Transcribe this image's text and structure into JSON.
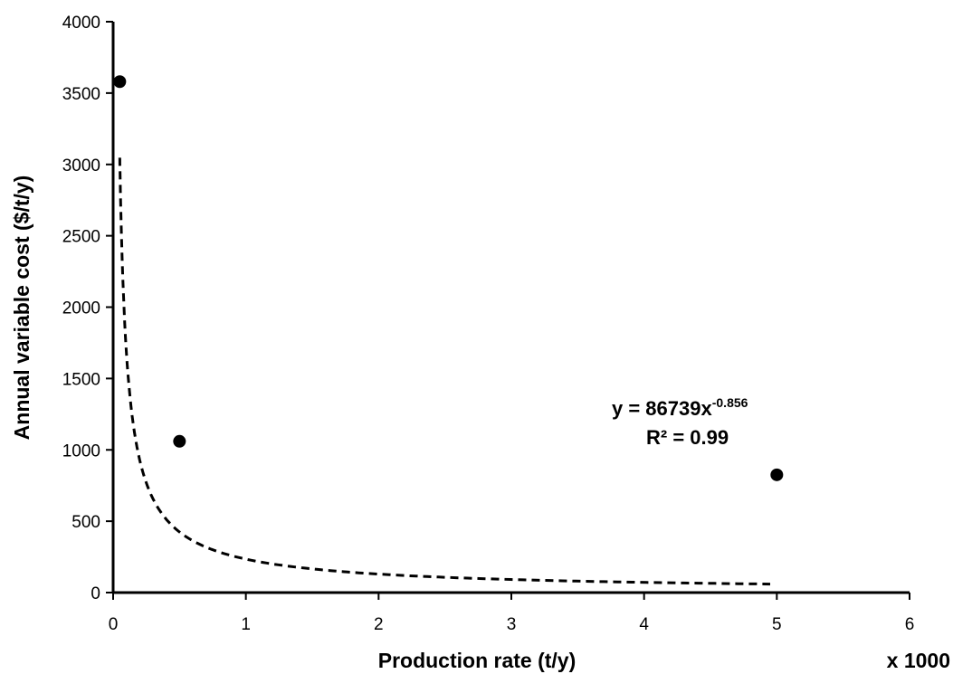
{
  "chart_data": {
    "type": "scatter",
    "xlabel": "Production rate (t/y)",
    "x_multiplier": "x 1000",
    "ylabel": "Annual variable cost  ($/t/y)",
    "xlim": [
      0,
      6
    ],
    "ylim": [
      0,
      4000
    ],
    "x_ticks": [
      "0",
      "1",
      "2",
      "3",
      "4",
      "5",
      "6"
    ],
    "y_ticks": [
      "0",
      "500",
      "1000",
      "1500",
      "2000",
      "2500",
      "3000",
      "3500",
      "4000"
    ],
    "grid": false,
    "series": [
      {
        "marker": "circle",
        "color": "#000000",
        "points": [
          {
            "x": 0.05,
            "y": 3580
          },
          {
            "x": 0.5,
            "y": 1060
          },
          {
            "x": 5.0,
            "y": 825
          }
        ]
      }
    ],
    "trendline": {
      "type": "power",
      "style": "dashed",
      "color": "#000000",
      "x_range": [
        0.05,
        4.95
      ],
      "equation_prefix": "y = 86739x",
      "equation_exponent": "-0.856",
      "r_squared": "R² = 0.99"
    }
  }
}
